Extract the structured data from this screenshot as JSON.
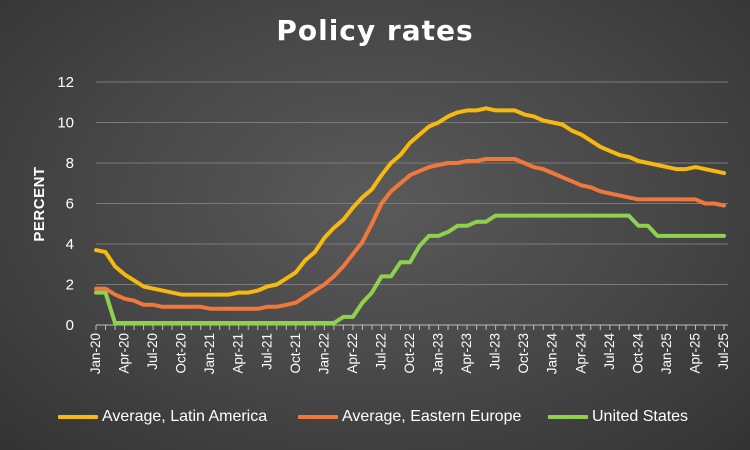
{
  "chart_data": {
    "type": "line",
    "title": "Policy rates",
    "xlabel": "",
    "ylabel": "PERCENT",
    "ylim": [
      0,
      12
    ],
    "yticks": [
      0,
      2,
      4,
      6,
      8,
      10,
      12
    ],
    "grid": true,
    "legend_position": "bottom",
    "x": [
      "Jan-20",
      "Feb-20",
      "Mar-20",
      "Apr-20",
      "May-20",
      "Jun-20",
      "Jul-20",
      "Aug-20",
      "Sep-20",
      "Oct-20",
      "Nov-20",
      "Dec-20",
      "Jan-21",
      "Feb-21",
      "Mar-21",
      "Apr-21",
      "May-21",
      "Jun-21",
      "Jul-21",
      "Aug-21",
      "Sep-21",
      "Oct-21",
      "Nov-21",
      "Dec-21",
      "Jan-22",
      "Feb-22",
      "Mar-22",
      "Apr-22",
      "May-22",
      "Jun-22",
      "Jul-22",
      "Aug-22",
      "Sep-22",
      "Oct-22",
      "Nov-22",
      "Dec-22",
      "Jan-23",
      "Feb-23",
      "Mar-23",
      "Apr-23",
      "May-23",
      "Jun-23",
      "Jul-23",
      "Aug-23",
      "Sep-23",
      "Oct-23",
      "Nov-23",
      "Dec-23",
      "Jan-24",
      "Feb-24",
      "Mar-24",
      "Apr-24",
      "May-24",
      "Jun-24",
      "Jul-24",
      "Aug-24",
      "Sep-24",
      "Oct-24",
      "Nov-24",
      "Dec-24",
      "Jan-25",
      "Feb-25",
      "Mar-25",
      "Apr-25",
      "May-25",
      "Jun-25",
      "Jul-25"
    ],
    "xtick_labels": [
      "Jan-20",
      "Apr-20",
      "Jul-20",
      "Oct-20",
      "Jan-21",
      "Apr-21",
      "Jul-21",
      "Oct-21",
      "Jan-22",
      "Apr-22",
      "Jul-22",
      "Oct-22",
      "Jan-23",
      "Apr-23",
      "Jul-23",
      "Oct-23",
      "Jan-24",
      "Apr-24",
      "Jul-24",
      "Oct-24",
      "Jan-25",
      "Apr-25",
      "Jul-25"
    ],
    "series": [
      {
        "name": "Average, Latin America",
        "color": "#F5B90F",
        "values": [
          3.7,
          3.6,
          2.9,
          2.5,
          2.2,
          1.9,
          1.8,
          1.7,
          1.6,
          1.5,
          1.5,
          1.5,
          1.5,
          1.5,
          1.5,
          1.6,
          1.6,
          1.7,
          1.9,
          2.0,
          2.3,
          2.6,
          3.2,
          3.6,
          4.3,
          4.8,
          5.2,
          5.8,
          6.3,
          6.7,
          7.4,
          8.0,
          8.4,
          9.0,
          9.4,
          9.8,
          10.0,
          10.3,
          10.5,
          10.6,
          10.6,
          10.7,
          10.6,
          10.6,
          10.6,
          10.4,
          10.3,
          10.1,
          10.0,
          9.9,
          9.6,
          9.4,
          9.1,
          8.8,
          8.6,
          8.4,
          8.3,
          8.1,
          8.0,
          7.9,
          7.8,
          7.7,
          7.7,
          7.8,
          7.7,
          7.6,
          7.5
        ]
      },
      {
        "name": "Average, Eastern Europe",
        "color": "#F0783A",
        "values": [
          1.8,
          1.8,
          1.5,
          1.3,
          1.2,
          1.0,
          1.0,
          0.9,
          0.9,
          0.9,
          0.9,
          0.9,
          0.8,
          0.8,
          0.8,
          0.8,
          0.8,
          0.8,
          0.9,
          0.9,
          1.0,
          1.1,
          1.4,
          1.7,
          2.0,
          2.4,
          2.9,
          3.5,
          4.1,
          5.0,
          6.0,
          6.6,
          7.0,
          7.4,
          7.6,
          7.8,
          7.9,
          8.0,
          8.0,
          8.1,
          8.1,
          8.2,
          8.2,
          8.2,
          8.2,
          8.0,
          7.8,
          7.7,
          7.5,
          7.3,
          7.1,
          6.9,
          6.8,
          6.6,
          6.5,
          6.4,
          6.3,
          6.2,
          6.2,
          6.2,
          6.2,
          6.2,
          6.2,
          6.2,
          6.0,
          6.0,
          5.9
        ]
      },
      {
        "name": "United States",
        "color": "#8FD14F",
        "values": [
          1.6,
          1.6,
          0.1,
          0.1,
          0.1,
          0.1,
          0.1,
          0.1,
          0.1,
          0.1,
          0.1,
          0.1,
          0.1,
          0.1,
          0.1,
          0.1,
          0.1,
          0.1,
          0.1,
          0.1,
          0.1,
          0.1,
          0.1,
          0.1,
          0.1,
          0.1,
          0.4,
          0.4,
          1.1,
          1.6,
          2.4,
          2.4,
          3.1,
          3.1,
          3.9,
          4.4,
          4.4,
          4.6,
          4.9,
          4.9,
          5.1,
          5.1,
          5.4,
          5.4,
          5.4,
          5.4,
          5.4,
          5.4,
          5.4,
          5.4,
          5.4,
          5.4,
          5.4,
          5.4,
          5.4,
          5.4,
          5.4,
          4.9,
          4.9,
          4.4,
          4.4,
          4.4,
          4.4,
          4.4,
          4.4,
          4.4,
          4.4
        ]
      }
    ]
  }
}
